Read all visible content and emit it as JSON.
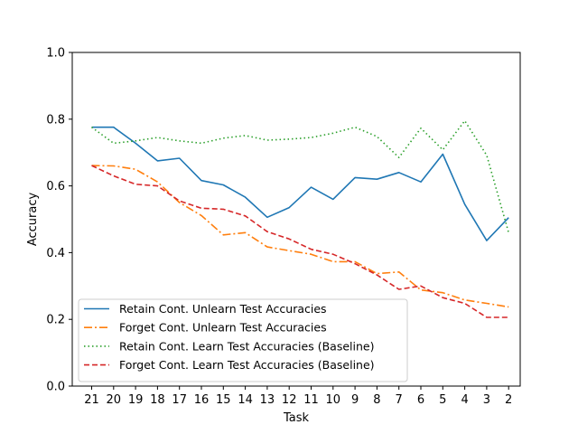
{
  "chart_data": {
    "type": "line",
    "title": "",
    "xlabel": "Task",
    "ylabel": "Accuracy",
    "ylim": [
      0.0,
      1.0
    ],
    "yticks": [
      "0.0",
      "0.2",
      "0.4",
      "0.6",
      "0.8",
      "1.0"
    ],
    "x": [
      "21",
      "20",
      "19",
      "18",
      "17",
      "16",
      "15",
      "14",
      "13",
      "12",
      "11",
      "10",
      "9",
      "8",
      "7",
      "6",
      "5",
      "4",
      "3",
      "2"
    ],
    "grid": false,
    "legend_position": "lower-left",
    "series": [
      {
        "name": "Retain Cont. Unlearn Test Accuracies",
        "color": "#1f77b4",
        "dash": "solid",
        "values": [
          0.776,
          0.776,
          0.728,
          0.675,
          0.683,
          0.616,
          0.603,
          0.566,
          0.506,
          0.535,
          0.596,
          0.56,
          0.625,
          0.62,
          0.64,
          0.612,
          0.695,
          0.545,
          0.436,
          0.505
        ]
      },
      {
        "name": "Forget Cont. Unlearn Test Accuracies",
        "color": "#ff7f0e",
        "dash": "dashdot",
        "values": [
          0.661,
          0.66,
          0.65,
          0.612,
          0.55,
          0.511,
          0.453,
          0.46,
          0.417,
          0.406,
          0.395,
          0.373,
          0.373,
          0.337,
          0.342,
          0.288,
          0.28,
          0.258,
          0.248,
          0.237
        ]
      },
      {
        "name": "Retain Cont. Learn Test Accuracies (Baseline)",
        "color": "#2ca02c",
        "dash": "dotted",
        "values": [
          0.776,
          0.728,
          0.735,
          0.745,
          0.735,
          0.728,
          0.743,
          0.751,
          0.737,
          0.74,
          0.745,
          0.758,
          0.776,
          0.748,
          0.685,
          0.773,
          0.708,
          0.795,
          0.692,
          0.46
        ]
      },
      {
        "name": "Forget Cont. Learn Test Accuracies (Baseline)",
        "color": "#d62728",
        "dash": "dashed",
        "values": [
          0.661,
          0.63,
          0.605,
          0.6,
          0.555,
          0.533,
          0.53,
          0.51,
          0.463,
          0.441,
          0.41,
          0.395,
          0.367,
          0.333,
          0.29,
          0.3,
          0.265,
          0.248,
          0.206,
          0.206
        ]
      }
    ]
  }
}
